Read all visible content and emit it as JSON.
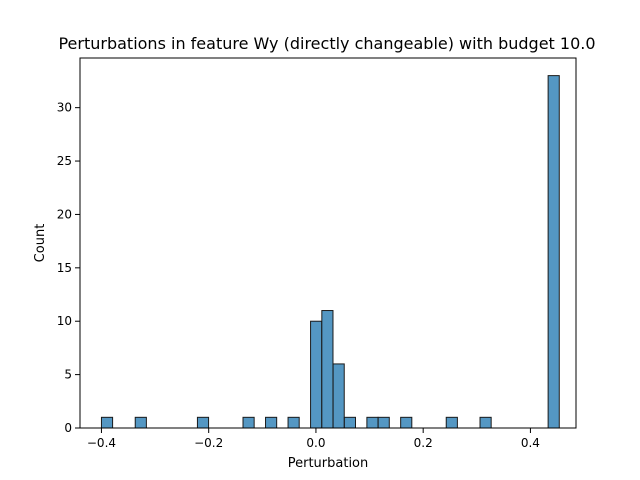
{
  "chart_data": {
    "type": "bar",
    "title": "Perturbations in feature Wy (directly changeable) with budget 10.0",
    "xlabel": "Perturbation",
    "ylabel": "Count",
    "xlim": [
      -0.44,
      0.485
    ],
    "ylim": [
      0,
      34.65
    ],
    "xticks": [
      -0.4,
      -0.2,
      0.0,
      0.2,
      0.4
    ],
    "xtick_labels": [
      "−0.4",
      "−0.2",
      "0.0",
      "0.2",
      "0.4"
    ],
    "yticks": [
      0,
      5,
      10,
      15,
      20,
      25,
      30
    ],
    "ytick_labels": [
      "0",
      "5",
      "10",
      "15",
      "20",
      "25",
      "30"
    ],
    "grid": false,
    "bin_width": 0.0208,
    "bins": [
      {
        "x": -0.4,
        "value": 1
      },
      {
        "x": -0.337,
        "value": 1
      },
      {
        "x": -0.221,
        "value": 1
      },
      {
        "x": -0.136,
        "value": 1
      },
      {
        "x": -0.094,
        "value": 1
      },
      {
        "x": -0.052,
        "value": 1
      },
      {
        "x": -0.01,
        "value": 10
      },
      {
        "x": 0.011,
        "value": 11
      },
      {
        "x": 0.032,
        "value": 6
      },
      {
        "x": 0.053,
        "value": 1
      },
      {
        "x": 0.095,
        "value": 1
      },
      {
        "x": 0.116,
        "value": 1
      },
      {
        "x": 0.158,
        "value": 1
      },
      {
        "x": 0.243,
        "value": 1
      },
      {
        "x": 0.306,
        "value": 1
      },
      {
        "x": 0.433,
        "value": 33
      }
    ]
  }
}
